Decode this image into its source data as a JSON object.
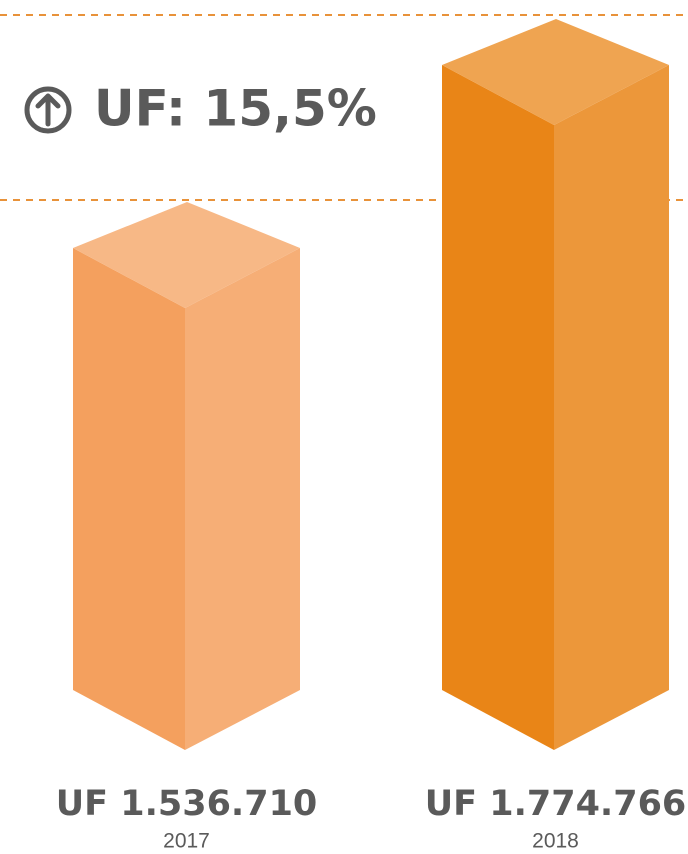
{
  "chart_data": {
    "type": "bar3d",
    "annotation": "UF: 15,5%",
    "categories": [
      "2017",
      "2018"
    ],
    "values": [
      1536710,
      1774766
    ],
    "value_labels": [
      "UF 1.536.710",
      "UF 1.774.766"
    ],
    "colors": [
      "#f4a05e",
      "#e98517"
    ]
  }
}
